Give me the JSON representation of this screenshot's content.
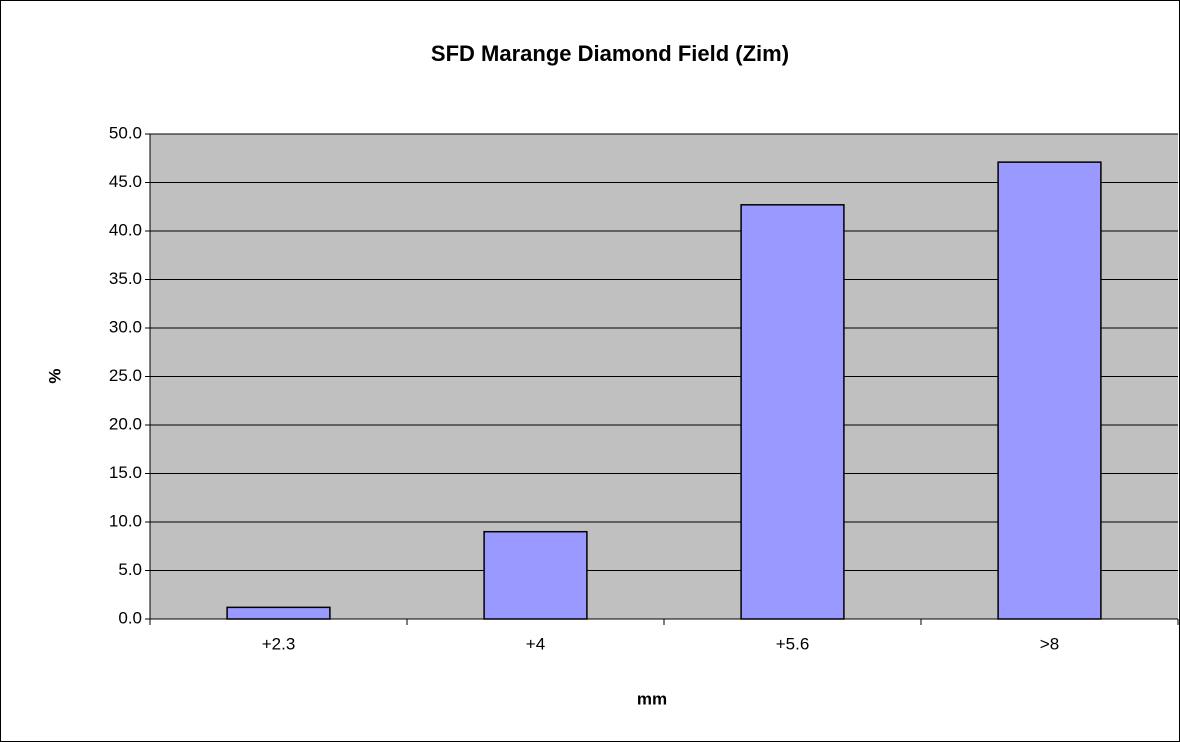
{
  "chart_data": {
    "type": "bar",
    "title": "SFD Marange Diamond Field (Zim)",
    "x_label": "mm",
    "y_label": "%",
    "categories": [
      "+2.3",
      "+4",
      "+5.6",
      ">8"
    ],
    "values": [
      1.2,
      9.0,
      42.7,
      47.1
    ],
    "color": "#9999ff",
    "ylim": [
      0,
      50
    ],
    "yticks": [
      {
        "value": 0,
        "label": "0.0"
      },
      {
        "value": 5,
        "label": "5.0"
      },
      {
        "value": 10,
        "label": "10.0"
      },
      {
        "value": 15,
        "label": "15.0"
      },
      {
        "value": 20,
        "label": "20.0"
      },
      {
        "value": 25,
        "label": "25.0"
      },
      {
        "value": 30,
        "label": "30.0"
      },
      {
        "value": 35,
        "label": "35.0"
      },
      {
        "value": 40,
        "label": "40.0"
      },
      {
        "value": 45,
        "label": "45.0"
      },
      {
        "value": 50,
        "label": "50.0"
      }
    ],
    "grid": true
  }
}
